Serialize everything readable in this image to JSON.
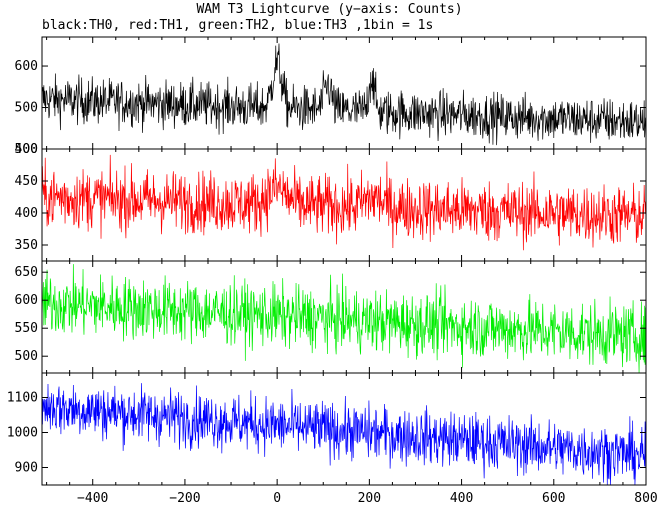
{
  "title": "WAM T3 Lightcurve (y−axis: Counts)",
  "subtitle": "black:TH0, red:TH1, green:TH2, blue:TH3 ,1bin = 1s",
  "chart_data": {
    "type": "line",
    "xlim": [
      -510,
      800
    ],
    "x_ticks": [
      -400,
      -200,
      0,
      200,
      400,
      600,
      800
    ],
    "x_tick_labels": [
      "−400",
      "−200",
      "0",
      "200",
      "400",
      "600",
      "800"
    ],
    "bin_seconds": 1,
    "grid": false,
    "panels": [
      {
        "name": "TH0",
        "color": "#000000",
        "ylim": [
          400,
          670
        ],
        "y_ticks": [
          400,
          500,
          600
        ],
        "y_tick_labels": [
          "400",
          "500",
          "600"
        ],
        "baseline_start": 520,
        "baseline_end": 465,
        "noise": 28,
        "peaks": [
          {
            "x": 0,
            "height": 110,
            "width": 10
          },
          {
            "x": 110,
            "height": 60,
            "width": 8
          },
          {
            "x": 205,
            "height": 85,
            "width": 6
          }
        ]
      },
      {
        "name": "TH1",
        "color": "#ff0000",
        "ylim": [
          325,
          500
        ],
        "y_ticks": [
          350,
          400,
          450,
          500
        ],
        "y_tick_labels": [
          "350",
          "400",
          "450",
          "500"
        ],
        "baseline_start": 425,
        "baseline_end": 395,
        "noise": 24,
        "peaks": [
          {
            "x": 0,
            "height": 25,
            "width": 20
          },
          {
            "x": 210,
            "height": 15,
            "width": 20
          }
        ]
      },
      {
        "name": "TH2",
        "color": "#00ee00",
        "ylim": [
          470,
          670
        ],
        "y_ticks": [
          500,
          550,
          600,
          650
        ],
        "y_tick_labels": [
          "500",
          "550",
          "600",
          "650"
        ],
        "baseline_start": 595,
        "baseline_end": 535,
        "noise": 28,
        "peaks": []
      },
      {
        "name": "TH3",
        "color": "#0000ff",
        "ylim": [
          850,
          1170
        ],
        "y_ticks": [
          900,
          1000,
          1100
        ],
        "y_tick_labels": [
          "900",
          "1000",
          "1100"
        ],
        "baseline_start": 1075,
        "baseline_end": 935,
        "noise": 40,
        "peaks": []
      }
    ]
  }
}
